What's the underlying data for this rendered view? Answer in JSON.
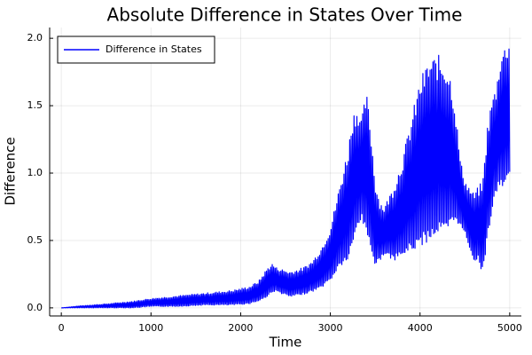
{
  "chart_data": {
    "type": "line",
    "title": "Absolute Difference in States Over Time",
    "xlabel": "Time",
    "ylabel": "Difference",
    "xlim": [
      -130,
      5130
    ],
    "ylim": [
      -0.06,
      2.08
    ],
    "xticks": [
      0,
      1000,
      2000,
      3000,
      4000,
      5000
    ],
    "xtick_labels": [
      "0",
      "1000",
      "2000",
      "3000",
      "4000",
      "5000"
    ],
    "yticks": [
      0.0,
      0.5,
      1.0,
      1.5,
      2.0
    ],
    "ytick_labels": [
      "0.0",
      "0.5",
      "1.0",
      "1.5",
      "2.0"
    ],
    "grid": true,
    "legend_position": "top-left",
    "series": [
      {
        "name": "Difference in States",
        "color": "#0000ff",
        "envelope": {
          "x": [
            0,
            200,
            500,
            800,
            1000,
            1300,
            1600,
            1900,
            2100,
            2200,
            2300,
            2350,
            2400,
            2550,
            2700,
            2800,
            2900,
            3000,
            3100,
            3200,
            3250,
            3300,
            3350,
            3400,
            3450,
            3500,
            3550,
            3600,
            3700,
            3800,
            3900,
            4000,
            4100,
            4200,
            4300,
            4350,
            4400,
            4450,
            4500,
            4550,
            4600,
            4650,
            4700,
            4750,
            4800,
            4850,
            4900,
            4950,
            5000
          ],
          "low": [
            0.0,
            0.0,
            0.0,
            0.0,
            0.01,
            0.01,
            0.02,
            0.02,
            0.03,
            0.05,
            0.08,
            0.12,
            0.12,
            0.08,
            0.1,
            0.12,
            0.15,
            0.2,
            0.3,
            0.35,
            0.45,
            0.6,
            0.65,
            0.55,
            0.45,
            0.3,
            0.35,
            0.4,
            0.35,
            0.38,
            0.42,
            0.45,
            0.5,
            0.55,
            0.55,
            0.6,
            0.65,
            0.6,
            0.55,
            0.45,
            0.35,
            0.35,
            0.25,
            0.5,
            0.7,
            0.85,
            0.9,
            0.9,
            0.95
          ],
          "high": [
            0.0,
            0.015,
            0.03,
            0.05,
            0.07,
            0.09,
            0.11,
            0.13,
            0.16,
            0.2,
            0.3,
            0.33,
            0.3,
            0.27,
            0.3,
            0.35,
            0.45,
            0.6,
            0.9,
            1.2,
            1.45,
            1.5,
            1.4,
            1.62,
            1.35,
            0.95,
            0.8,
            0.75,
            0.9,
            1.1,
            1.4,
            1.7,
            1.85,
            1.88,
            1.82,
            1.7,
            1.45,
            1.1,
            0.95,
            0.9,
            0.85,
            0.9,
            0.95,
            1.35,
            1.55,
            1.65,
            1.9,
            1.95,
            2.03
          ]
        }
      }
    ]
  }
}
